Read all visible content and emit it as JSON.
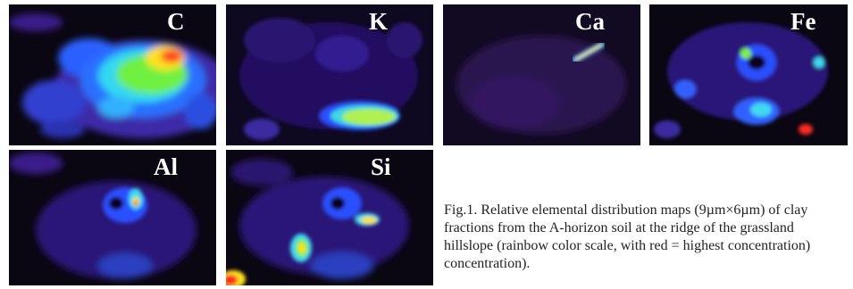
{
  "maps": [
    {
      "id": "C",
      "label": "C"
    },
    {
      "id": "K",
      "label": "K"
    },
    {
      "id": "Ca",
      "label": "Ca"
    },
    {
      "id": "Fe",
      "label": "Fe"
    },
    {
      "id": "Al",
      "label": "Al"
    },
    {
      "id": "Si",
      "label": "Si"
    }
  ],
  "caption": "Fig.1. Relative elemental distribution maps (9µm×6µm) of clay fractions from the A-horizon soil at the ridge of the grassland hillslope (rainbow color scale, with red = highest concentration) concentration).",
  "colors": {
    "background": "#0a0612",
    "low": "#5a1a9a",
    "mid_low": "#2a4cff",
    "mid": "#30e0f0",
    "mid_high": "#80f030",
    "high": "#ffe020",
    "highest": "#ff2020"
  }
}
